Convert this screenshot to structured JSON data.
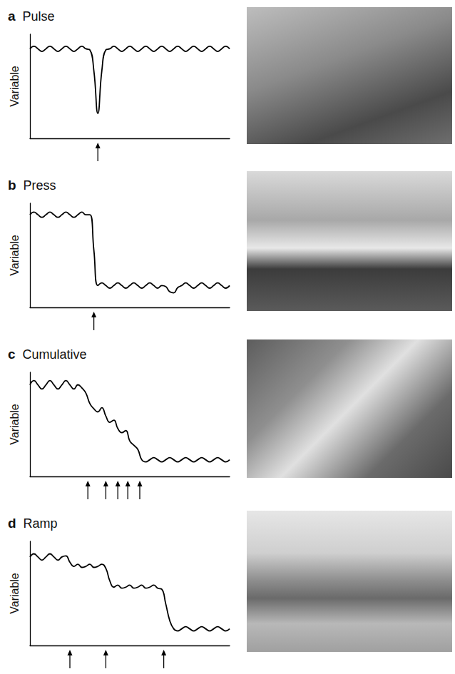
{
  "chart_data": [
    {
      "type": "line",
      "label": "a",
      "title": "Pulse",
      "y_label": "Variable",
      "color": "#000000",
      "tick_labels": false,
      "xlim": [
        0,
        100
      ],
      "ylim": [
        0,
        10
      ],
      "events": [
        34
      ],
      "x": [
        0,
        2,
        4,
        6,
        8,
        10,
        12,
        14,
        16,
        18,
        20,
        22,
        24,
        26,
        28,
        30,
        32,
        34,
        36,
        38,
        40,
        42,
        44,
        46,
        48,
        50,
        52,
        54,
        56,
        58,
        60,
        62,
        64,
        66,
        68,
        70,
        72,
        74,
        76,
        78,
        80,
        82,
        84,
        86,
        88,
        90,
        92,
        94,
        96,
        98,
        100
      ],
      "values": [
        8.6,
        8.85,
        8.6,
        8.35,
        8.6,
        8.85,
        8.6,
        8.35,
        8.6,
        8.85,
        8.6,
        8.35,
        8.6,
        8.85,
        8.6,
        8.5,
        6.5,
        2.4,
        6.5,
        8.5,
        8.6,
        8.85,
        8.6,
        8.35,
        8.6,
        8.85,
        8.6,
        8.35,
        8.6,
        8.85,
        8.6,
        8.35,
        8.6,
        8.85,
        8.6,
        8.35,
        8.6,
        8.85,
        8.6,
        8.35,
        8.6,
        8.85,
        8.6,
        8.35,
        8.6,
        8.85,
        8.6,
        8.35,
        8.6,
        8.85,
        8.6
      ]
    },
    {
      "type": "line",
      "label": "b",
      "title": "Press",
      "y_label": "Variable",
      "color": "#000000",
      "tick_labels": false,
      "xlim": [
        0,
        100
      ],
      "ylim": [
        0,
        10
      ],
      "events": [
        32
      ],
      "x": [
        0,
        2,
        4,
        6,
        8,
        10,
        12,
        14,
        16,
        18,
        20,
        22,
        24,
        26,
        28,
        30,
        32,
        34,
        36,
        38,
        40,
        42,
        44,
        46,
        48,
        50,
        52,
        54,
        56,
        58,
        60,
        62,
        64,
        66,
        68,
        70,
        72,
        74,
        76,
        78,
        80,
        82,
        84,
        86,
        88,
        90,
        92,
        94,
        96,
        98,
        100
      ],
      "values": [
        8.9,
        9.15,
        8.9,
        8.65,
        8.9,
        9.15,
        8.9,
        8.65,
        8.9,
        9.15,
        8.9,
        8.65,
        8.9,
        9.15,
        8.9,
        8.9,
        5.5,
        2.1,
        2.35,
        2.1,
        1.85,
        2.1,
        2.35,
        2.1,
        1.85,
        2.1,
        2.35,
        2.1,
        1.85,
        2.1,
        2.35,
        2.1,
        1.85,
        2.1,
        2.0,
        1.5,
        1.4,
        1.9,
        2.1,
        2.35,
        2.1,
        1.85,
        2.1,
        2.35,
        2.1,
        1.85,
        2.1,
        2.35,
        2.1,
        1.85,
        2.1
      ]
    },
    {
      "type": "line",
      "label": "c",
      "title": "Cumulative",
      "y_label": "Variable",
      "color": "#000000",
      "tick_labels": false,
      "xlim": [
        0,
        100
      ],
      "ylim": [
        0,
        10
      ],
      "events": [
        29,
        38,
        44,
        49,
        55
      ],
      "x": [
        0,
        2,
        4,
        6,
        8,
        10,
        12,
        14,
        16,
        18,
        20,
        22,
        24,
        26,
        28,
        30,
        32,
        34,
        36,
        38,
        40,
        42,
        44,
        46,
        48,
        50,
        52,
        54,
        56,
        58,
        60,
        62,
        64,
        66,
        68,
        70,
        72,
        74,
        76,
        78,
        80,
        82,
        84,
        86,
        88,
        90,
        92,
        94,
        96,
        98,
        100
      ],
      "values": [
        8.8,
        9.2,
        8.8,
        8.4,
        8.8,
        9.2,
        8.8,
        8.4,
        8.8,
        9.2,
        8.8,
        8.4,
        8.8,
        8.5,
        8.0,
        7.0,
        6.5,
        6.2,
        6.6,
        5.8,
        5.2,
        5.4,
        4.6,
        4.2,
        4.4,
        3.4,
        3.0,
        2.6,
        1.6,
        1.4,
        1.6,
        1.8,
        1.6,
        1.4,
        1.6,
        1.8,
        1.6,
        1.4,
        1.6,
        1.8,
        1.6,
        1.4,
        1.6,
        1.8,
        1.6,
        1.4,
        1.6,
        1.8,
        1.6,
        1.4,
        1.6
      ]
    },
    {
      "type": "line",
      "label": "d",
      "title": "Ramp",
      "y_label": "Variable",
      "color": "#000000",
      "tick_labels": false,
      "xlim": [
        0,
        100
      ],
      "ylim": [
        0,
        10
      ],
      "events": [
        20,
        38,
        67
      ],
      "x": [
        0,
        2,
        4,
        6,
        8,
        10,
        12,
        14,
        16,
        18,
        20,
        22,
        24,
        26,
        28,
        30,
        32,
        34,
        36,
        38,
        40,
        42,
        44,
        46,
        48,
        50,
        52,
        54,
        56,
        58,
        60,
        62,
        64,
        66,
        68,
        70,
        72,
        74,
        76,
        78,
        80,
        82,
        84,
        86,
        88,
        90,
        92,
        94,
        96,
        98,
        100
      ],
      "values": [
        8.5,
        8.8,
        8.5,
        8.2,
        8.5,
        8.8,
        8.5,
        8.2,
        8.5,
        8.6,
        8.0,
        7.6,
        7.8,
        7.5,
        7.6,
        7.8,
        7.5,
        7.6,
        7.8,
        7.4,
        6.2,
        5.6,
        5.8,
        5.5,
        5.6,
        5.8,
        5.5,
        5.6,
        5.8,
        5.5,
        5.6,
        5.8,
        5.5,
        5.4,
        4.0,
        2.4,
        1.6,
        1.4,
        1.6,
        1.8,
        1.6,
        1.4,
        1.6,
        1.8,
        1.6,
        1.4,
        1.6,
        1.8,
        1.6,
        1.4,
        1.6
      ]
    }
  ]
}
